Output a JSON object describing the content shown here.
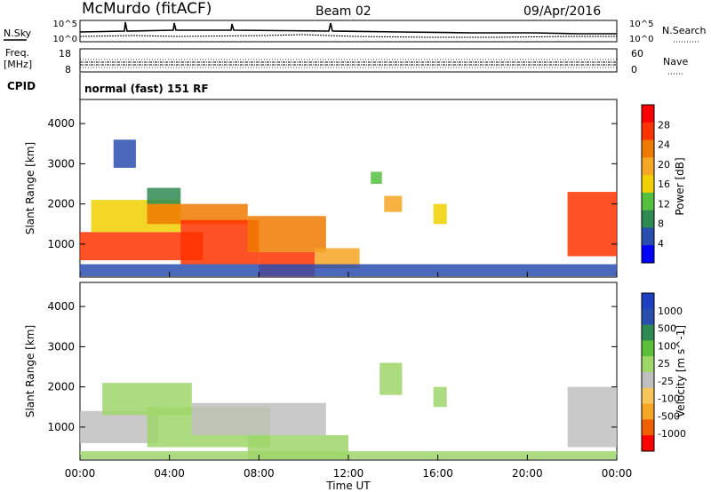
{
  "header": {
    "station": "McMurdo (fitACF)",
    "beam": "Beam 02",
    "date": "09/Apr/2016"
  },
  "noise_panel": {
    "left_label": "N.Sky",
    "right_label": "N.Search",
    "left_ticks": [
      "10^5",
      "10^0"
    ],
    "right_ticks": [
      "10^5",
      "10^0"
    ]
  },
  "freq_panel": {
    "label_line1": "Freq.",
    "label_line2": "[MHz]",
    "left_ticks": [
      "18",
      "8"
    ],
    "right_label": "Nave",
    "right_ticks": [
      "60",
      "0"
    ]
  },
  "cpid": {
    "label": "CPID",
    "text": "normal (fast) 151 RF"
  },
  "colors": {
    "power_scale": [
      "#0000ff",
      "#2a4db0",
      "#2e8a50",
      "#55c040",
      "#f0d000",
      "#f5a623",
      "#f07a00",
      "#ff3300",
      "#ff0000"
    ],
    "velocity_scale": [
      "#ff0000",
      "#f06000",
      "#f5a623",
      "#f7c65a",
      "#bfbfbf",
      "#9fd66a",
      "#5cbf3a",
      "#2e8a50",
      "#2a4db0",
      "#1e3fc0"
    ]
  },
  "chart_data": [
    {
      "type": "heatmap",
      "name": "power",
      "ylabel": "Slant Range [km]",
      "y_ticks": [
        "4000",
        "3000",
        "2000",
        "1000"
      ],
      "ylim": [
        180,
        4600
      ],
      "xlim": [
        0,
        24
      ],
      "colorbar": {
        "label": "Power [dB]",
        "ticks": [
          "28",
          "24",
          "20",
          "16",
          "12",
          "8",
          "4"
        ],
        "range": [
          0,
          32
        ]
      },
      "regions": [
        {
          "t0": 0.0,
          "t1": 5.5,
          "r0": 600,
          "r1": 1300,
          "level": 27
        },
        {
          "t0": 0.5,
          "t1": 4.5,
          "r0": 1300,
          "r1": 2100,
          "level": 16
        },
        {
          "t0": 3.0,
          "t1": 7.5,
          "r0": 1500,
          "r1": 2000,
          "level": 22
        },
        {
          "t0": 4.5,
          "t1": 8.0,
          "r0": 500,
          "r1": 1600,
          "level": 28
        },
        {
          "t0": 8.0,
          "t1": 10.5,
          "r0": 200,
          "r1": 800,
          "level": 28
        },
        {
          "t0": 7.5,
          "t1": 11.0,
          "r0": 800,
          "r1": 1700,
          "level": 24
        },
        {
          "t0": 10.5,
          "t1": 12.5,
          "r0": 400,
          "r1": 900,
          "level": 18
        },
        {
          "t0": 3.0,
          "t1": 4.5,
          "r0": 2000,
          "r1": 2400,
          "level": 10
        },
        {
          "t0": 1.5,
          "t1": 2.5,
          "r0": 2900,
          "r1": 3600,
          "level": 6
        },
        {
          "t0": 13.6,
          "t1": 14.4,
          "r0": 1800,
          "r1": 2200,
          "level": 18
        },
        {
          "t0": 13.0,
          "t1": 13.5,
          "r0": 2500,
          "r1": 2800,
          "level": 12
        },
        {
          "t0": 15.8,
          "t1": 16.4,
          "r0": 1500,
          "r1": 2000,
          "level": 16
        },
        {
          "t0": 21.8,
          "t1": 24.0,
          "r0": 700,
          "r1": 2300,
          "level": 26
        },
        {
          "t0": 0.0,
          "t1": 24.0,
          "r0": 200,
          "r1": 500,
          "level": 6
        }
      ]
    },
    {
      "type": "heatmap",
      "name": "velocity",
      "ylabel": "Slant Range [km]",
      "y_ticks": [
        "4000",
        "3000",
        "2000",
        "1000"
      ],
      "ylim": [
        180,
        4600
      ],
      "xlim": [
        0,
        24
      ],
      "xlabel": "Time UT",
      "x_ticks": [
        "00:00",
        "04:00",
        "08:00",
        "12:00",
        "16:00",
        "20:00",
        "00:00"
      ],
      "colorbar": {
        "label": "Velocity [m s^-1]",
        "ticks": [
          "1000",
          "500",
          "100",
          "25",
          "-25",
          "-100",
          "-500",
          "-1000"
        ],
        "range": [
          -1000,
          1000
        ]
      },
      "regions": [
        {
          "t0": 0.0,
          "t1": 3.5,
          "r0": 600,
          "r1": 1400,
          "level": -150
        },
        {
          "t0": 1.0,
          "t1": 5.0,
          "r0": 1300,
          "r1": 2100,
          "level": 120
        },
        {
          "t0": 3.0,
          "t1": 8.5,
          "r0": 500,
          "r1": 1500,
          "level": 60
        },
        {
          "t0": 5.0,
          "t1": 11.0,
          "r0": 800,
          "r1": 1600,
          "level": -150
        },
        {
          "t0": 7.5,
          "t1": 12.0,
          "r0": 200,
          "r1": 800,
          "level": 80
        },
        {
          "t0": 13.4,
          "t1": 14.4,
          "r0": 1800,
          "r1": 2600,
          "level": 90
        },
        {
          "t0": 15.8,
          "t1": 16.4,
          "r0": 1500,
          "r1": 2000,
          "level": 150
        },
        {
          "t0": 21.8,
          "t1": 24.0,
          "r0": 500,
          "r1": 2000,
          "level": -150
        },
        {
          "t0": 0.0,
          "t1": 24.0,
          "r0": 200,
          "r1": 400,
          "level": 150
        }
      ]
    }
  ]
}
